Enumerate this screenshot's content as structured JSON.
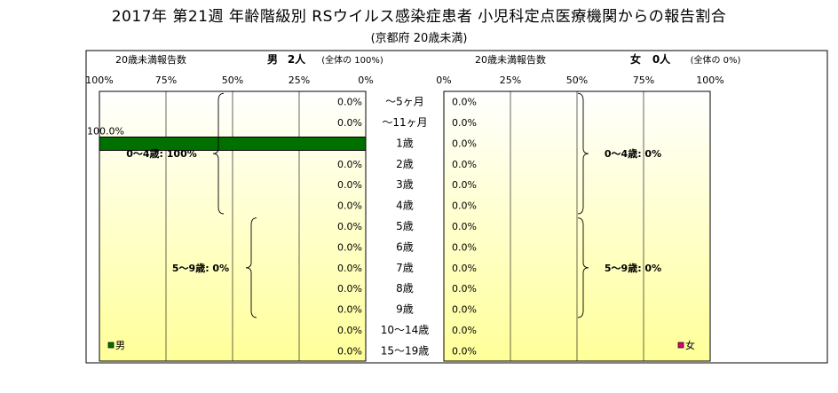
{
  "title": "2017年 第21週 年齢階級別 RSウイルス感染症患者 小児科定点医療機関からの報告割合",
  "subtitle": "(京都府 20歳未満)",
  "colors": {
    "male": "#007000",
    "female": "#e0007a",
    "panel_top": "#ffffff",
    "panel_bottom": "#ffff99"
  },
  "chart_data": [
    {
      "type": "bar",
      "orientation": "horizontal",
      "direction": "right-to-left",
      "panel": "male",
      "header_left": "20歳未満報告数",
      "header_sex": "男",
      "header_count": "2人",
      "header_share": "(全体の 100%)",
      "xlim": [
        0,
        100
      ],
      "x_unit": "%",
      "ticks": [
        "100%",
        "75%",
        "50%",
        "25%",
        "0%"
      ],
      "categories": [
        "〜5ヶ月",
        "〜11ヶ月",
        "1歳",
        "2歳",
        "3歳",
        "4歳",
        "5歳",
        "6歳",
        "7歳",
        "8歳",
        "9歳",
        "10〜14歳",
        "15〜19歳"
      ],
      "values": [
        0,
        0,
        100,
        0,
        0,
        0,
        0,
        0,
        0,
        0,
        0,
        0,
        0
      ],
      "labels": [
        "0.0%",
        "0.0%",
        "100.0%",
        "0.0%",
        "0.0%",
        "0.0%",
        "0.0%",
        "0.0%",
        "0.0%",
        "0.0%",
        "0.0%",
        "0.0%",
        "0.0%"
      ],
      "group_annotations": [
        {
          "text": "0〜4歳: 100%",
          "from": 0,
          "to": 5
        },
        {
          "text": "5〜9歳: 0%",
          "from": 6,
          "to": 10
        }
      ],
      "legend": "男"
    },
    {
      "type": "bar",
      "orientation": "horizontal",
      "direction": "left-to-right",
      "panel": "female",
      "header_left": "20歳未満報告数",
      "header_sex": "女",
      "header_count": "0人",
      "header_share": "(全体の 0%)",
      "xlim": [
        0,
        100
      ],
      "x_unit": "%",
      "ticks": [
        "0%",
        "25%",
        "50%",
        "75%",
        "100%"
      ],
      "categories": [
        "〜5ヶ月",
        "〜11ヶ月",
        "1歳",
        "2歳",
        "3歳",
        "4歳",
        "5歳",
        "6歳",
        "7歳",
        "8歳",
        "9歳",
        "10〜14歳",
        "15〜19歳"
      ],
      "values": [
        0,
        0,
        0,
        0,
        0,
        0,
        0,
        0,
        0,
        0,
        0,
        0,
        0
      ],
      "labels": [
        "0.0%",
        "0.0%",
        "0.0%",
        "0.0%",
        "0.0%",
        "0.0%",
        "0.0%",
        "0.0%",
        "0.0%",
        "0.0%",
        "0.0%",
        "0.0%",
        "0.0%"
      ],
      "group_annotations": [
        {
          "text": "0〜4歳: 0%",
          "from": 0,
          "to": 5
        },
        {
          "text": "5〜9歳: 0%",
          "from": 6,
          "to": 10
        }
      ],
      "legend": "女"
    }
  ]
}
